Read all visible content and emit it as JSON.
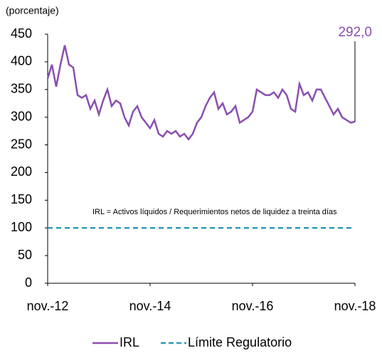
{
  "chart_data": {
    "type": "line",
    "ylabel": "(porcentaje)",
    "annotation": "292,0",
    "note": "IRL = Activos líquidos / Requerimientos netos de liquidez a treinta días",
    "categories": [
      "nov.-12",
      null,
      null,
      null,
      null,
      null,
      null,
      null,
      null,
      null,
      null,
      null,
      null,
      null,
      null,
      null,
      null,
      null,
      null,
      null,
      null,
      null,
      null,
      null,
      "nov.-14",
      null,
      null,
      null,
      null,
      null,
      null,
      null,
      null,
      null,
      null,
      null,
      null,
      null,
      null,
      null,
      null,
      null,
      null,
      null,
      null,
      null,
      null,
      null,
      "nov.-16",
      null,
      null,
      null,
      null,
      null,
      null,
      null,
      null,
      null,
      null,
      null,
      null,
      null,
      null,
      null,
      null,
      null,
      null,
      null,
      null,
      null,
      null,
      null,
      "nov.-18"
    ],
    "series": [
      {
        "name": "IRL",
        "color": "#8a4fb0",
        "dashed": false,
        "values": [
          370,
          395,
          355,
          395,
          430,
          395,
          390,
          340,
          335,
          340,
          315,
          330,
          305,
          330,
          350,
          320,
          330,
          325,
          300,
          285,
          310,
          320,
          300,
          290,
          280,
          295,
          270,
          265,
          275,
          270,
          275,
          265,
          270,
          260,
          270,
          290,
          300,
          320,
          335,
          345,
          315,
          325,
          305,
          310,
          320,
          290,
          295,
          300,
          310,
          350,
          345,
          340,
          340,
          345,
          335,
          350,
          340,
          315,
          310,
          360,
          340,
          345,
          330,
          350,
          350,
          335,
          320,
          305,
          315,
          300,
          295,
          290,
          292
        ]
      },
      {
        "name": "Límite Regulatorio",
        "color": "#2e9ab5",
        "dashed": true,
        "values": [
          100,
          100,
          100,
          100,
          100,
          100,
          100,
          100,
          100,
          100,
          100,
          100,
          100,
          100,
          100,
          100,
          100,
          100,
          100,
          100,
          100,
          100,
          100,
          100,
          100,
          100,
          100,
          100,
          100,
          100,
          100,
          100,
          100,
          100,
          100,
          100,
          100,
          100,
          100,
          100,
          100,
          100,
          100,
          100,
          100,
          100,
          100,
          100,
          100,
          100,
          100,
          100,
          100,
          100,
          100,
          100,
          100,
          100,
          100,
          100,
          100,
          100,
          100,
          100,
          100,
          100,
          100,
          100,
          100,
          100,
          100,
          100,
          100
        ]
      }
    ],
    "ylim": [
      0,
      450
    ],
    "yticks": [
      0,
      50,
      100,
      150,
      200,
      250,
      300,
      350,
      400,
      450
    ],
    "grid": false,
    "legend": "bottom"
  }
}
